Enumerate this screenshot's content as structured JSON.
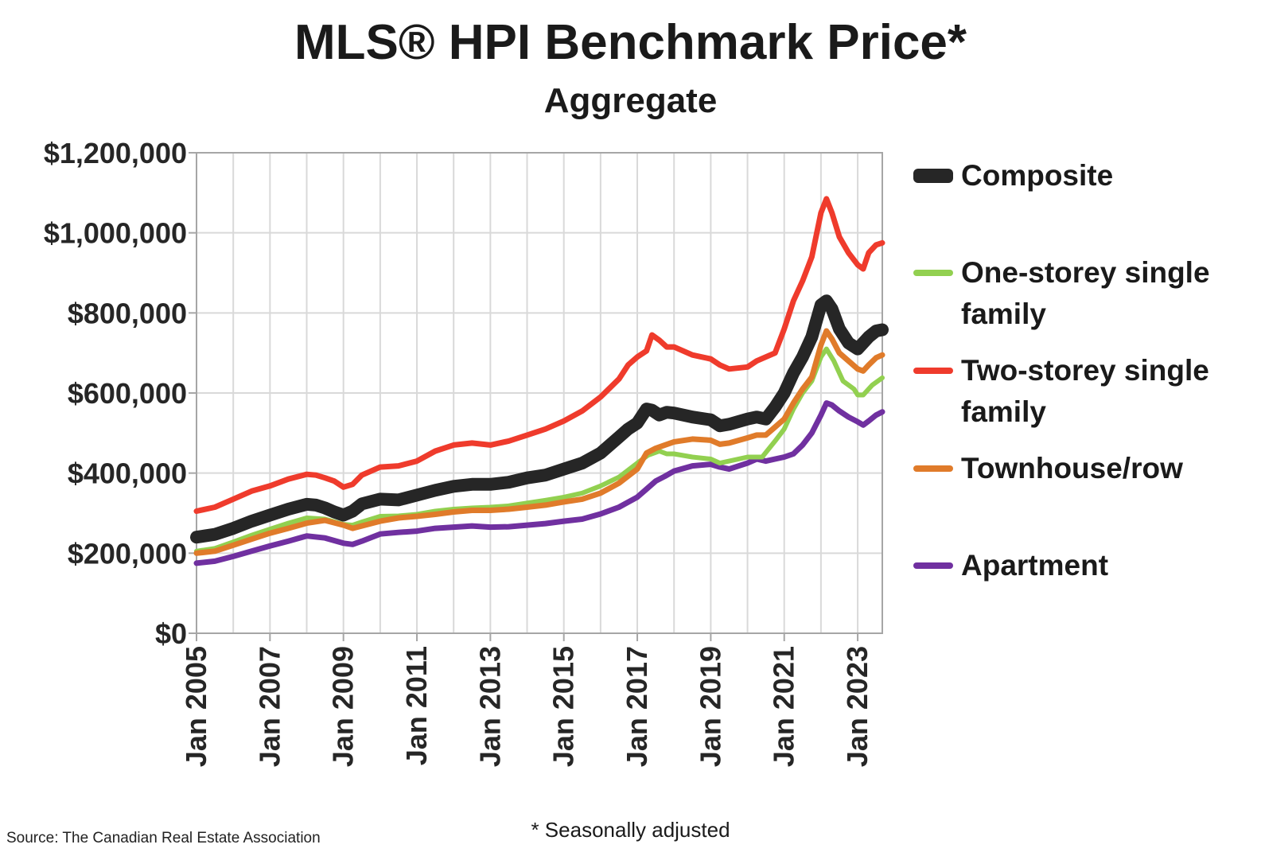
{
  "chart_data": {
    "type": "line",
    "title": "MLS® HPI Benchmark Price*",
    "subtitle": "Aggregate",
    "xlabel": "",
    "ylabel": "",
    "ylim": [
      0,
      1200000
    ],
    "yticks": [
      0,
      200000,
      400000,
      600000,
      800000,
      1000000,
      1200000
    ],
    "ytick_labels": [
      "$0",
      "$200,000",
      "$400,000",
      "$600,000",
      "$800,000",
      "$1,000,000",
      "$1,200,000"
    ],
    "xlim": [
      2005.0,
      2023.67
    ],
    "xticks": [
      2005,
      2007,
      2009,
      2011,
      2013,
      2015,
      2017,
      2019,
      2021,
      2023
    ],
    "xtick_labels": [
      "Jan 2005",
      "Jan 2007",
      "Jan 2009",
      "Jan 2011",
      "Jan 2013",
      "Jan 2015",
      "Jan 2017",
      "Jan 2019",
      "Jan 2021",
      "Jan 2023"
    ],
    "grid": true,
    "legend_position": "right",
    "series": [
      {
        "name": "Composite",
        "color": "#262626",
        "x": [
          2005.0,
          2005.5,
          2006.0,
          2006.5,
          2007.0,
          2007.5,
          2008.0,
          2008.25,
          2008.5,
          2008.75,
          2009.0,
          2009.25,
          2009.5,
          2010.0,
          2010.5,
          2011.0,
          2011.5,
          2012.0,
          2012.5,
          2013.0,
          2013.5,
          2014.0,
          2014.5,
          2015.0,
          2015.5,
          2016.0,
          2016.5,
          2016.75,
          2017.0,
          2017.25,
          2017.4,
          2017.6,
          2017.8,
          2018.0,
          2018.5,
          2019.0,
          2019.25,
          2019.5,
          2020.0,
          2020.25,
          2020.5,
          2020.75,
          2021.0,
          2021.25,
          2021.5,
          2021.75,
          2022.0,
          2022.15,
          2022.3,
          2022.5,
          2022.75,
          2023.0,
          2023.15,
          2023.3,
          2023.5,
          2023.67
        ],
        "values": [
          240000,
          247000,
          262000,
          280000,
          295000,
          310000,
          322000,
          320000,
          313000,
          303000,
          295000,
          305000,
          323000,
          335000,
          333000,
          345000,
          357000,
          367000,
          372000,
          372000,
          377000,
          388000,
          395000,
          410000,
          425000,
          450000,
          490000,
          510000,
          525000,
          560000,
          557000,
          545000,
          552000,
          550000,
          540000,
          533000,
          518000,
          522000,
          535000,
          540000,
          535000,
          565000,
          600000,
          650000,
          690000,
          740000,
          820000,
          830000,
          810000,
          760000,
          725000,
          710000,
          725000,
          740000,
          755000,
          758000
        ]
      },
      {
        "name": "One-storey single family",
        "color": "#92d050",
        "x": [
          2005.0,
          2005.5,
          2006.0,
          2006.5,
          2007.0,
          2007.5,
          2008.0,
          2008.5,
          2009.0,
          2009.25,
          2009.5,
          2010.0,
          2010.5,
          2011.0,
          2011.5,
          2012.0,
          2012.5,
          2013.0,
          2013.5,
          2014.0,
          2014.5,
          2015.0,
          2015.5,
          2016.0,
          2016.5,
          2017.0,
          2017.3,
          2017.6,
          2017.8,
          2018.0,
          2018.5,
          2019.0,
          2019.25,
          2019.5,
          2020.0,
          2020.4,
          2020.75,
          2021.0,
          2021.25,
          2021.5,
          2021.75,
          2022.0,
          2022.15,
          2022.35,
          2022.6,
          2022.9,
          2023.0,
          2023.15,
          2023.4,
          2023.67
        ],
        "values": [
          205000,
          212000,
          228000,
          245000,
          260000,
          275000,
          288000,
          285000,
          272000,
          270000,
          278000,
          292000,
          293000,
          297000,
          305000,
          310000,
          313000,
          315000,
          318000,
          325000,
          332000,
          340000,
          350000,
          368000,
          390000,
          425000,
          445000,
          455000,
          448000,
          448000,
          440000,
          435000,
          425000,
          430000,
          440000,
          440000,
          480000,
          510000,
          560000,
          600000,
          630000,
          690000,
          710000,
          680000,
          630000,
          610000,
          595000,
          595000,
          620000,
          638000
        ]
      },
      {
        "name": "Two-storey single family",
        "color": "#ef3b2c",
        "x": [
          2005.0,
          2005.5,
          2006.0,
          2006.5,
          2007.0,
          2007.5,
          2008.0,
          2008.25,
          2008.5,
          2008.75,
          2009.0,
          2009.25,
          2009.5,
          2010.0,
          2010.5,
          2011.0,
          2011.5,
          2012.0,
          2012.5,
          2013.0,
          2013.5,
          2014.0,
          2014.5,
          2015.0,
          2015.5,
          2016.0,
          2016.5,
          2016.75,
          2017.0,
          2017.25,
          2017.4,
          2017.6,
          2017.8,
          2018.0,
          2018.5,
          2019.0,
          2019.25,
          2019.5,
          2020.0,
          2020.25,
          2020.5,
          2020.75,
          2021.0,
          2021.25,
          2021.5,
          2021.75,
          2022.0,
          2022.15,
          2022.3,
          2022.5,
          2022.75,
          2023.0,
          2023.15,
          2023.3,
          2023.5,
          2023.67
        ],
        "values": [
          305000,
          315000,
          335000,
          355000,
          368000,
          385000,
          397000,
          395000,
          388000,
          380000,
          365000,
          372000,
          395000,
          415000,
          418000,
          430000,
          455000,
          470000,
          475000,
          470000,
          480000,
          495000,
          510000,
          530000,
          555000,
          590000,
          635000,
          670000,
          690000,
          705000,
          745000,
          732000,
          715000,
          715000,
          695000,
          685000,
          670000,
          660000,
          665000,
          680000,
          690000,
          700000,
          760000,
          830000,
          880000,
          940000,
          1050000,
          1085000,
          1050000,
          990000,
          950000,
          920000,
          910000,
          950000,
          970000,
          975000
        ]
      },
      {
        "name": "Townhouse/row",
        "color": "#e07b2a",
        "x": [
          2005.0,
          2005.5,
          2006.0,
          2006.5,
          2007.0,
          2007.5,
          2008.0,
          2008.5,
          2009.0,
          2009.25,
          2009.5,
          2010.0,
          2010.5,
          2011.0,
          2011.5,
          2012.0,
          2012.5,
          2013.0,
          2013.5,
          2014.0,
          2014.5,
          2015.0,
          2015.5,
          2016.0,
          2016.5,
          2017.0,
          2017.25,
          2017.5,
          2017.75,
          2018.0,
          2018.5,
          2019.0,
          2019.25,
          2019.5,
          2020.0,
          2020.25,
          2020.5,
          2020.75,
          2021.0,
          2021.25,
          2021.5,
          2021.75,
          2022.0,
          2022.15,
          2022.3,
          2022.5,
          2022.75,
          2023.0,
          2023.15,
          2023.3,
          2023.5,
          2023.67
        ],
        "values": [
          200000,
          205000,
          220000,
          235000,
          250000,
          262000,
          275000,
          282000,
          270000,
          262000,
          268000,
          280000,
          288000,
          292000,
          297000,
          303000,
          307000,
          307000,
          310000,
          315000,
          320000,
          328000,
          335000,
          350000,
          375000,
          410000,
          450000,
          462000,
          470000,
          478000,
          485000,
          482000,
          472000,
          475000,
          488000,
          495000,
          495000,
          515000,
          535000,
          575000,
          610000,
          640000,
          720000,
          755000,
          735000,
          700000,
          680000,
          660000,
          655000,
          670000,
          688000,
          695000
        ]
      },
      {
        "name": "Apartment",
        "color": "#7030a0",
        "x": [
          2005.0,
          2005.5,
          2006.0,
          2006.5,
          2007.0,
          2007.5,
          2008.0,
          2008.5,
          2009.0,
          2009.25,
          2009.5,
          2010.0,
          2010.5,
          2011.0,
          2011.5,
          2012.0,
          2012.5,
          2013.0,
          2013.5,
          2014.0,
          2014.5,
          2015.0,
          2015.5,
          2016.0,
          2016.5,
          2017.0,
          2017.25,
          2017.5,
          2017.75,
          2018.0,
          2018.5,
          2019.0,
          2019.25,
          2019.5,
          2020.0,
          2020.25,
          2020.5,
          2020.75,
          2021.0,
          2021.25,
          2021.5,
          2021.75,
          2022.0,
          2022.15,
          2022.3,
          2022.5,
          2022.75,
          2023.0,
          2023.15,
          2023.3,
          2023.5,
          2023.67
        ],
        "values": [
          175000,
          180000,
          192000,
          205000,
          218000,
          230000,
          243000,
          238000,
          225000,
          222000,
          230000,
          248000,
          252000,
          255000,
          262000,
          265000,
          268000,
          265000,
          266000,
          270000,
          274000,
          280000,
          285000,
          298000,
          315000,
          340000,
          360000,
          380000,
          392000,
          405000,
          418000,
          422000,
          415000,
          410000,
          425000,
          435000,
          430000,
          435000,
          440000,
          448000,
          470000,
          500000,
          545000,
          575000,
          570000,
          555000,
          540000,
          528000,
          520000,
          530000,
          545000,
          553000
        ]
      }
    ],
    "footnote": "* Seasonally adjusted",
    "source": "Source: The Canadian Real Estate Association"
  }
}
